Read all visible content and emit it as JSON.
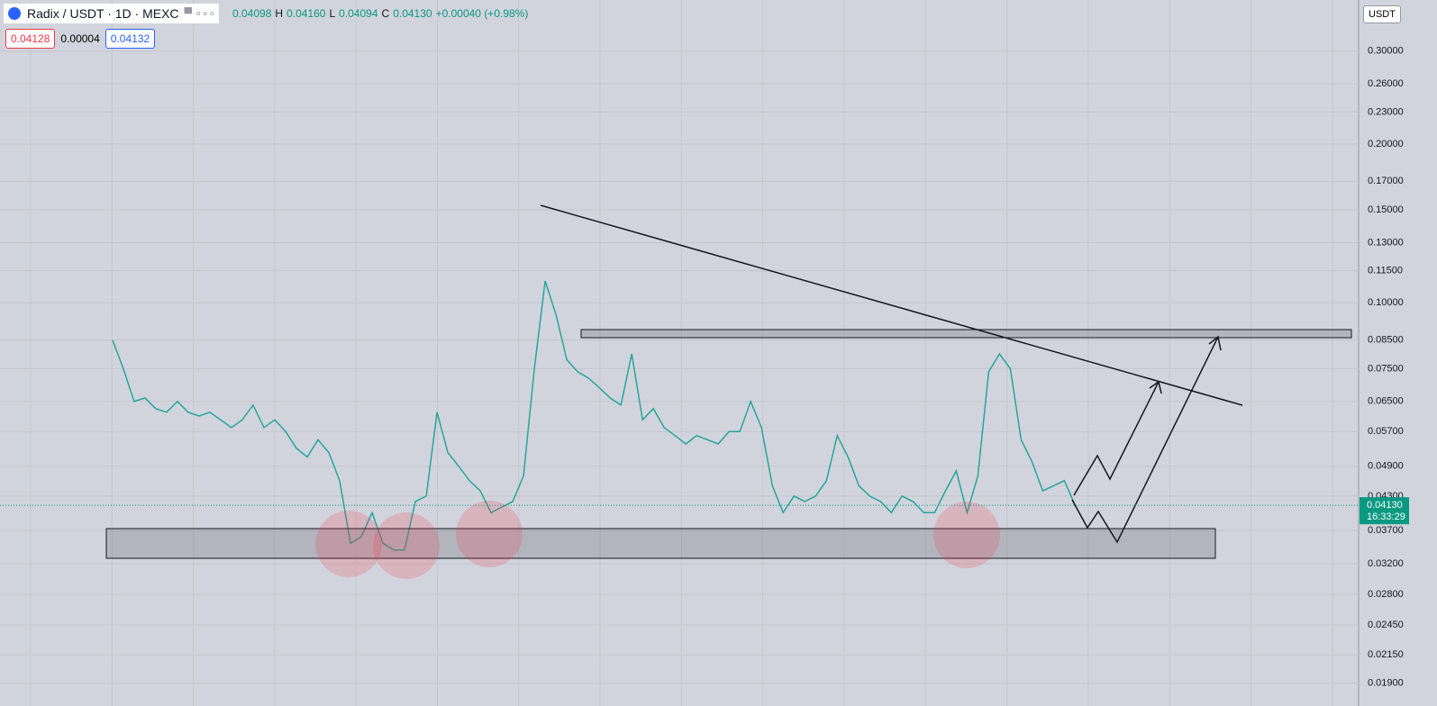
{
  "header": {
    "symbol": "Radix / USDT · 1D · MEXC",
    "open": "0.04098",
    "high_label": "H",
    "high": "0.04160",
    "low_label": "L",
    "low": "0.04094",
    "close_label": "C",
    "change": "+0.00040 (+0.98%)",
    "bid": "0.04128",
    "spread": "0.00004",
    "ask": "0.04132",
    "currency": "USDT",
    "countdown": "16:33:29"
  },
  "chart_data": {
    "type": "line",
    "log_scale": true,
    "grid": true,
    "last_price": {
      "value": 0.0413,
      "label": "0.04130"
    },
    "xlim": [
      -52,
      576
    ],
    "ylim": [
      0.0172,
      0.375
    ],
    "yticks": [
      {
        "value": 0.3,
        "label": "0.30000"
      },
      {
        "value": 0.26,
        "label": "0.26000"
      },
      {
        "value": 0.23,
        "label": "0.23000"
      },
      {
        "value": 0.2,
        "label": "0.20000"
      },
      {
        "value": 0.17,
        "label": "0.17000"
      },
      {
        "value": 0.15,
        "label": "0.15000"
      },
      {
        "value": 0.13,
        "label": "0.13000"
      },
      {
        "value": 0.115,
        "label": "0.11500"
      },
      {
        "value": 0.1,
        "label": "0.10000"
      },
      {
        "value": 0.085,
        "label": "0.08500"
      },
      {
        "value": 0.075,
        "label": "0.07500"
      },
      {
        "value": 0.065,
        "label": "0.06500"
      },
      {
        "value": 0.057,
        "label": "0.05700"
      },
      {
        "value": 0.049,
        "label": "0.04900"
      },
      {
        "value": 0.043,
        "label": "0.04300"
      },
      {
        "value": 0.037,
        "label": "0.03700"
      },
      {
        "value": 0.032,
        "label": "0.03200"
      },
      {
        "value": 0.028,
        "label": "0.02800"
      },
      {
        "value": 0.0245,
        "label": "0.02450"
      },
      {
        "value": 0.0215,
        "label": "0.02150"
      },
      {
        "value": 0.019,
        "label": "0.01900"
      }
    ],
    "x": [
      0,
      5,
      10,
      15,
      20,
      25,
      30,
      35,
      40,
      45,
      50,
      55,
      60,
      65,
      70,
      75,
      80,
      85,
      90,
      95,
      100,
      105,
      110,
      115,
      120,
      125,
      130,
      135,
      140,
      145,
      150,
      155,
      160,
      165,
      170,
      175,
      180,
      185,
      190,
      195,
      200,
      205,
      210,
      215,
      220,
      225,
      230,
      235,
      240,
      245,
      250,
      255,
      260,
      265,
      270,
      275,
      280,
      285,
      290,
      295,
      300,
      305,
      310,
      315,
      320,
      325,
      330,
      335,
      340,
      345,
      350,
      355,
      360,
      365,
      370,
      375,
      380,
      385,
      390,
      395,
      400,
      405,
      410,
      415,
      420,
      425,
      430,
      435,
      440,
      445
    ],
    "series": [
      {
        "color": "#26a69a",
        "values": [
          0.085,
          0.075,
          0.065,
          0.066,
          0.063,
          0.062,
          0.065,
          0.062,
          0.061,
          0.062,
          0.06,
          0.058,
          0.06,
          0.064,
          0.058,
          0.06,
          0.057,
          0.053,
          0.051,
          0.055,
          0.052,
          0.046,
          0.035,
          0.036,
          0.04,
          0.035,
          0.034,
          0.034,
          0.042,
          0.043,
          0.062,
          0.052,
          0.049,
          0.046,
          0.044,
          0.04,
          0.041,
          0.042,
          0.047,
          0.075,
          0.11,
          0.095,
          0.078,
          0.074,
          0.072,
          0.069,
          0.066,
          0.064,
          0.08,
          0.06,
          0.063,
          0.058,
          0.056,
          0.054,
          0.056,
          0.055,
          0.054,
          0.057,
          0.057,
          0.065,
          0.058,
          0.045,
          0.04,
          0.043,
          0.042,
          0.043,
          0.046,
          0.056,
          0.051,
          0.045,
          0.043,
          0.042,
          0.04,
          0.043,
          0.042,
          0.04,
          0.04,
          0.044,
          0.048,
          0.04,
          0.047,
          0.074,
          0.08,
          0.075,
          0.055,
          0.05,
          0.044,
          0.045,
          0.046,
          0.0413
        ]
      }
    ]
  }
}
